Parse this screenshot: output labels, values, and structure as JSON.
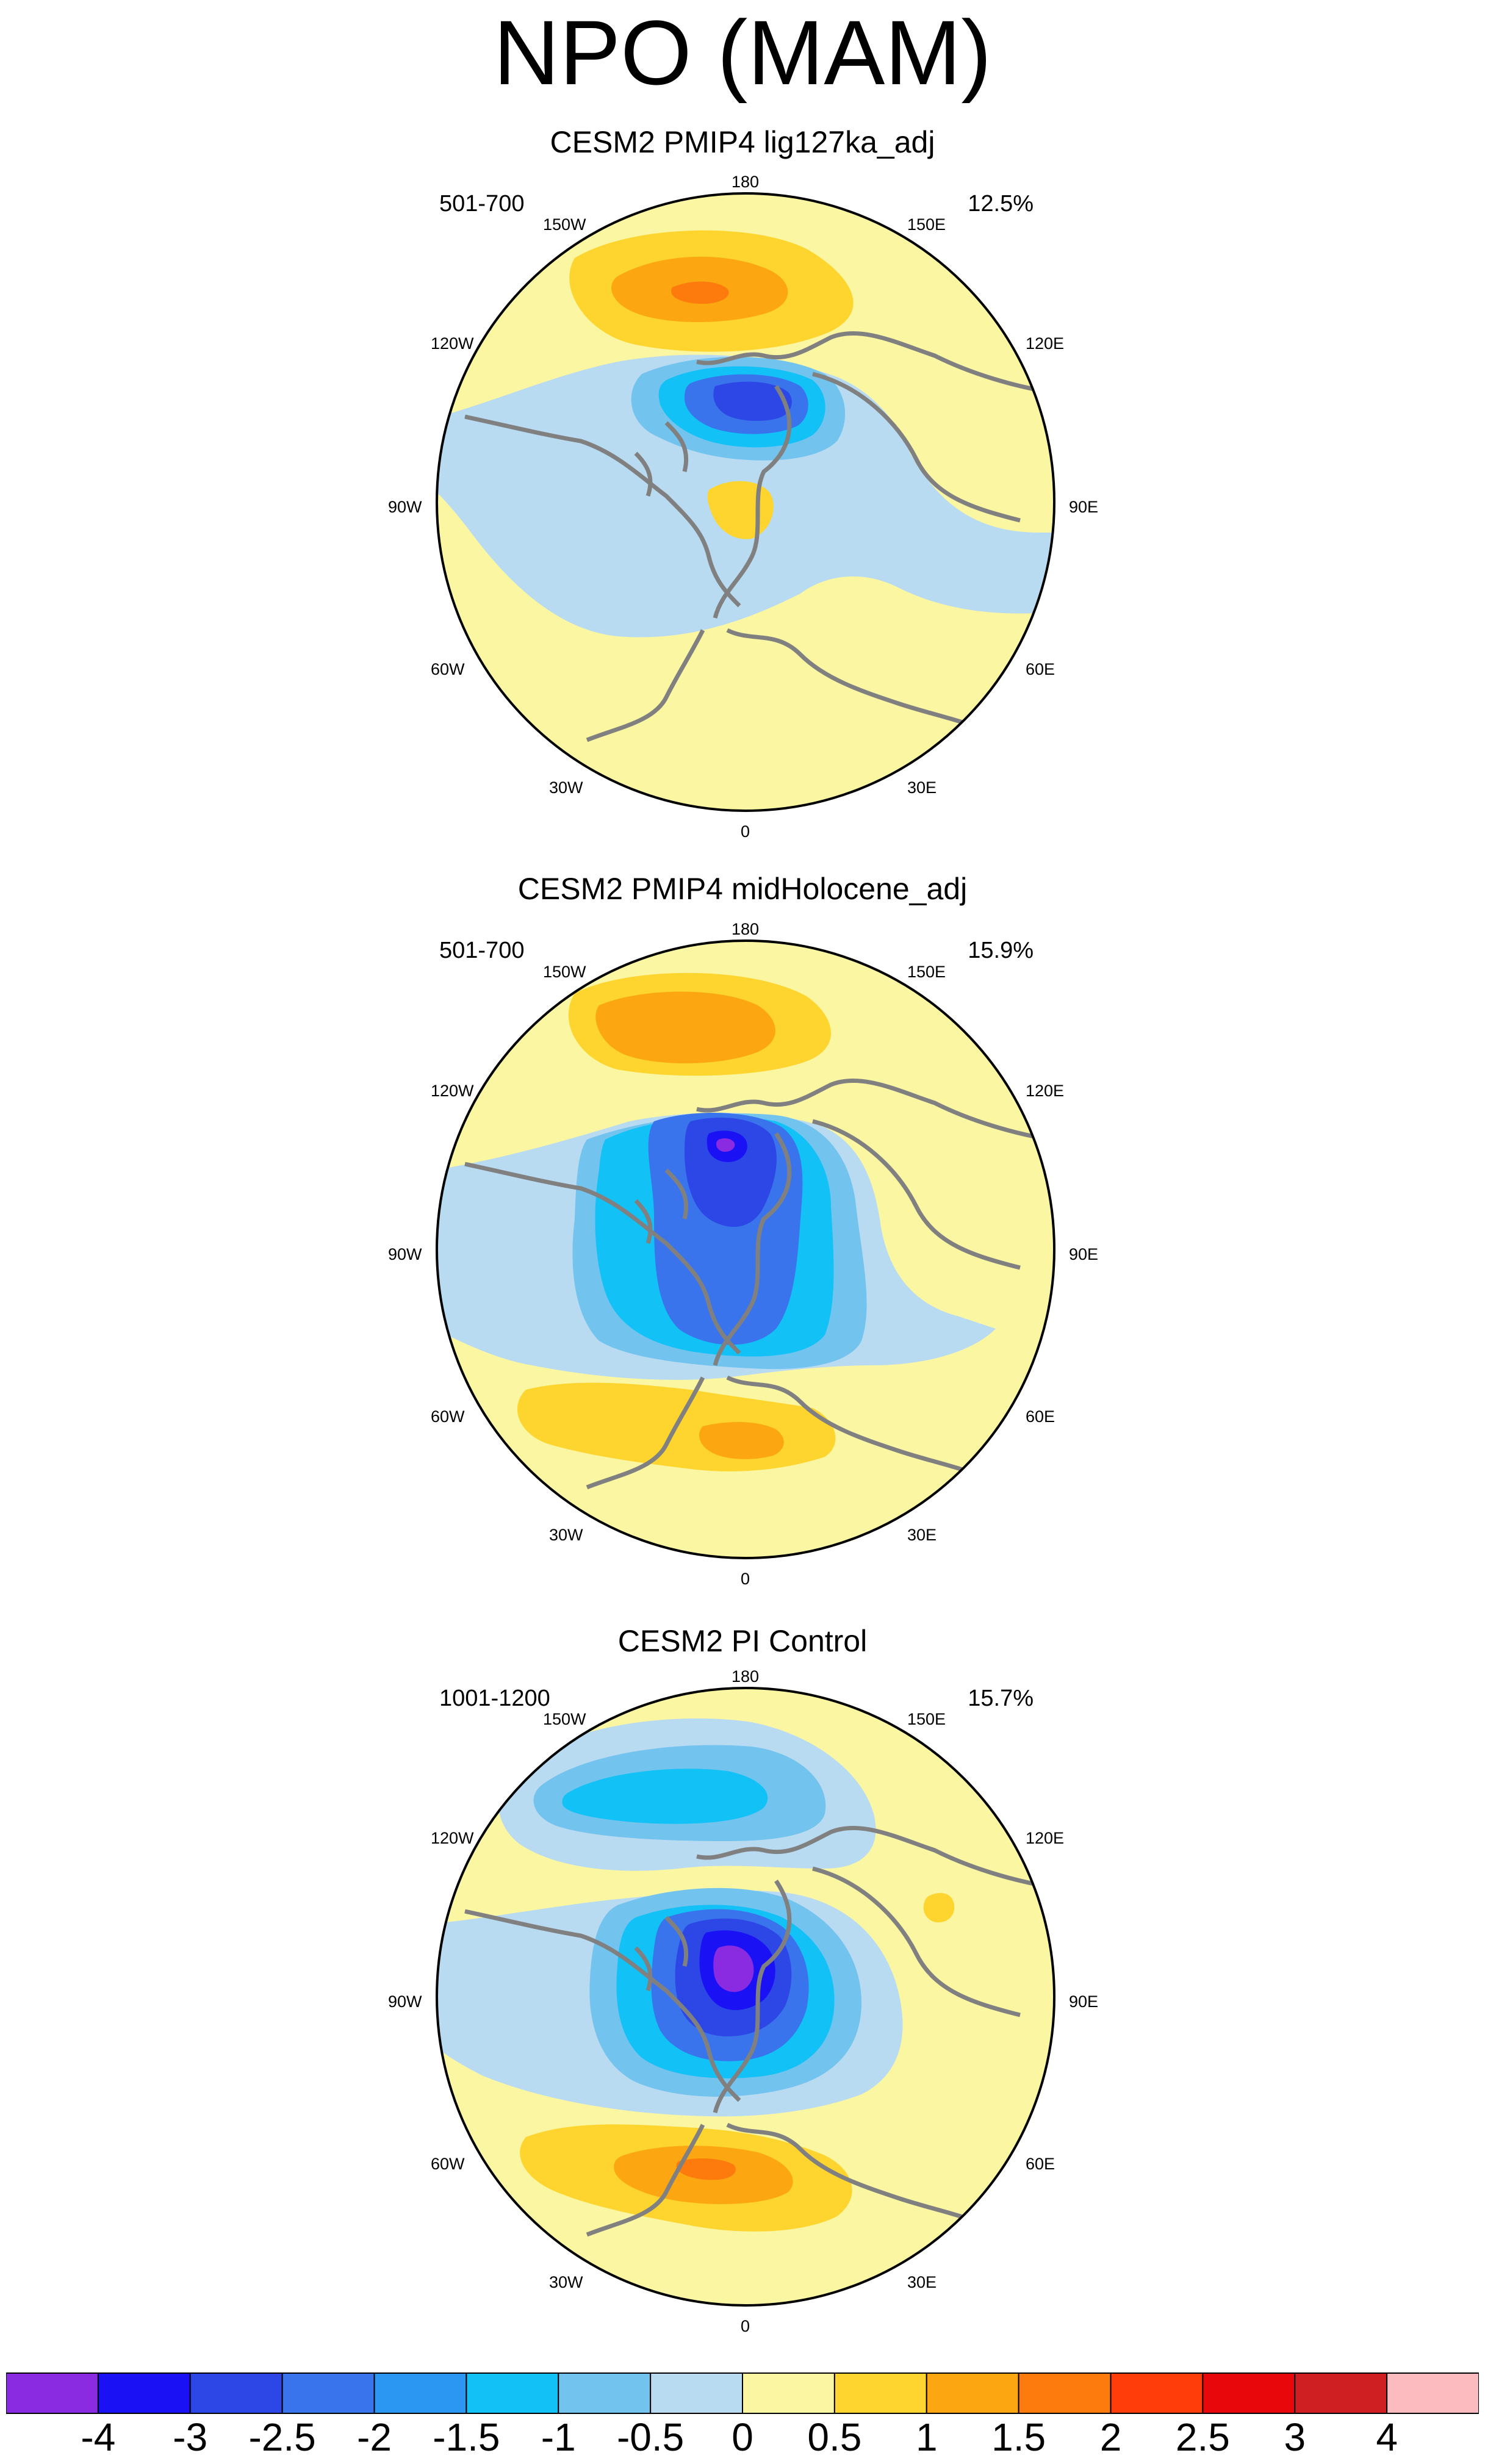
{
  "title": "NPO (MAM)",
  "panels": [
    {
      "title": "CESM2 PMIP4 lig127ka_adj",
      "years": "501-700",
      "variance": "12.5%",
      "lon_labels": [
        "180",
        "150E",
        "120E",
        "90E",
        "60E",
        "30E",
        "0",
        "30W",
        "60W",
        "90W",
        "120W",
        "150W"
      ]
    },
    {
      "title": "CESM2 PMIP4 midHolocene_adj",
      "years": "501-700",
      "variance": "15.9%",
      "lon_labels": [
        "180",
        "150E",
        "120E",
        "90E",
        "60E",
        "30E",
        "0",
        "30W",
        "60W",
        "90W",
        "120W",
        "150W"
      ]
    },
    {
      "title": "CESM2 PI Control",
      "years": "1001-1200",
      "variance": "15.7%",
      "lon_labels": [
        "180",
        "150E",
        "120E",
        "90E",
        "60E",
        "30E",
        "0",
        "30W",
        "60W",
        "90W",
        "120W",
        "150W"
      ]
    }
  ],
  "colorbar": {
    "labels": [
      "-4",
      "-3",
      "-2.5",
      "-2",
      "-1.5",
      "-1",
      "-0.5",
      "0",
      "0.5",
      "1",
      "1.5",
      "2",
      "2.5",
      "3",
      "4"
    ],
    "colors": [
      "#8a2be2",
      "#1a12f5",
      "#2c47e6",
      "#3a74ec",
      "#2b97f2",
      "#12c1f5",
      "#73c3ef",
      "#b9dbf2",
      "#fbf6a2",
      "#fdd52e",
      "#fca611",
      "#fd7a0c",
      "#fe3d0a",
      "#e8080b",
      "#cf1f23",
      "#fcbcbf"
    ]
  },
  "palette": {
    "background": "#fbf6a2",
    "coast": "#808080"
  }
}
